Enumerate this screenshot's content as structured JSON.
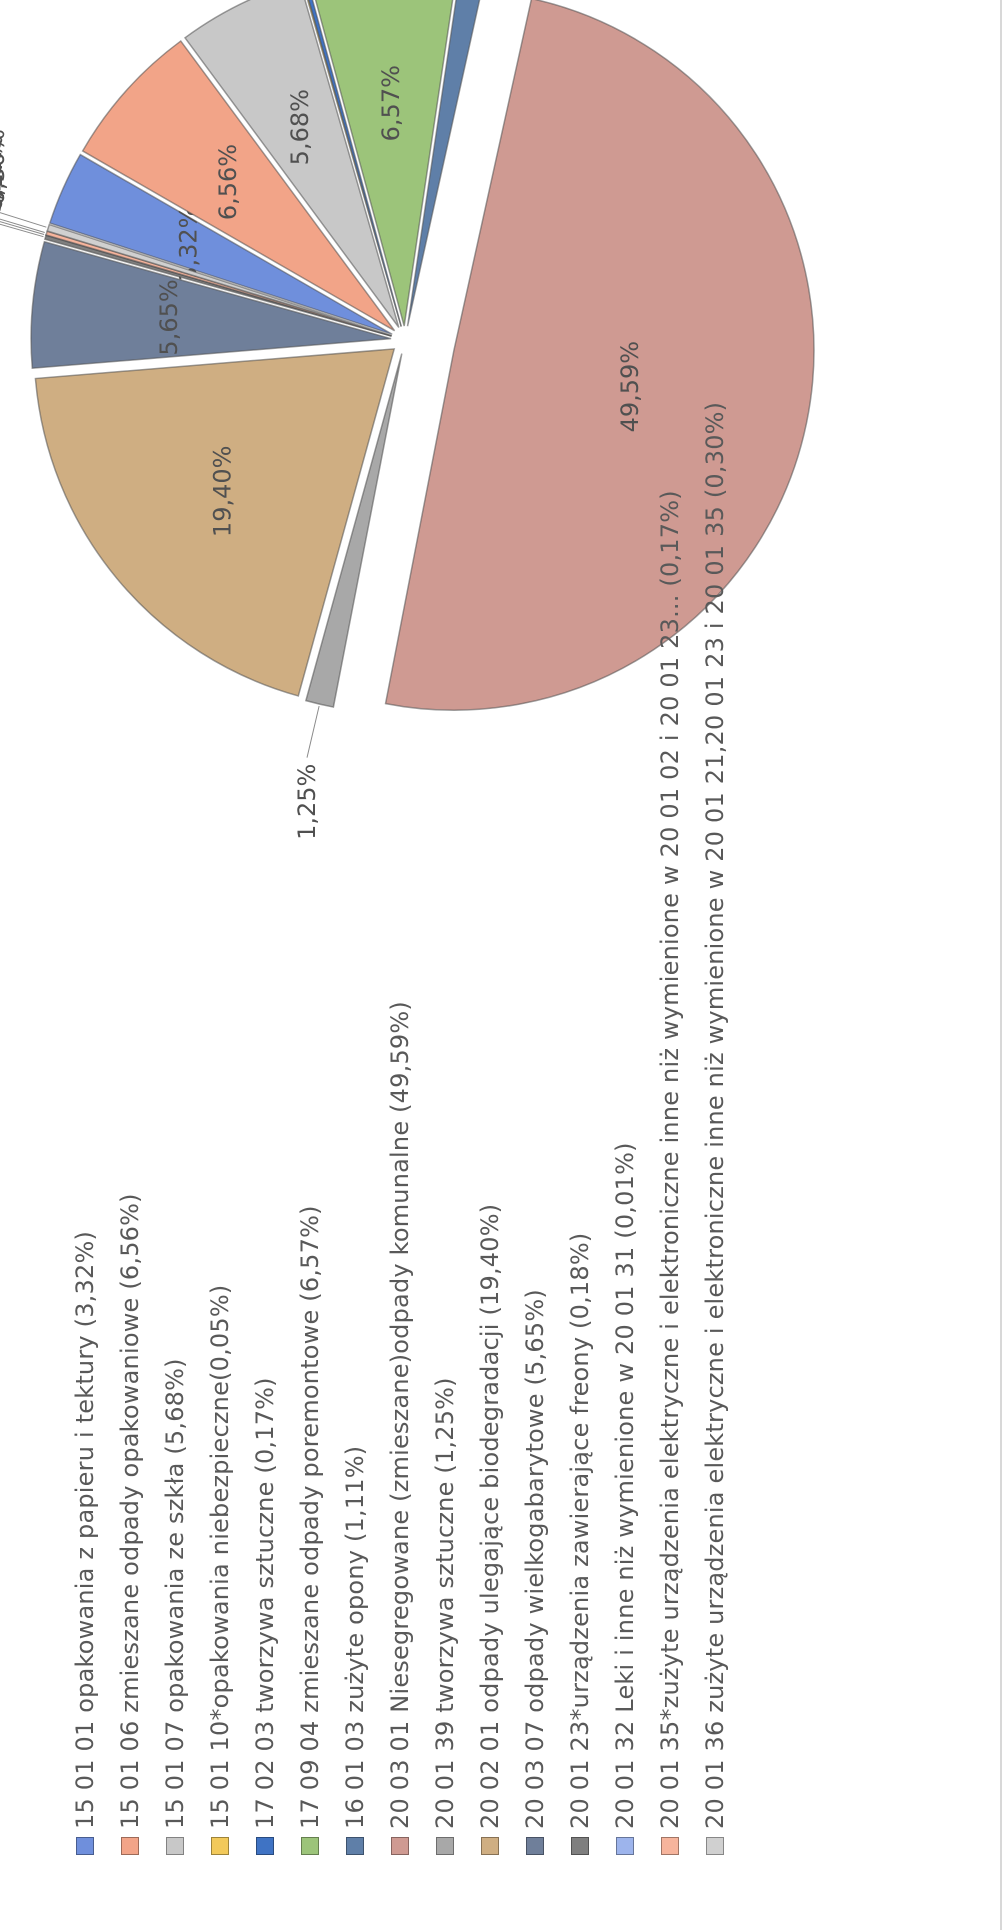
{
  "chart_data": {
    "type": "pie",
    "title": "",
    "slices": [
      {
        "label": "15 01 01 opakowania z papieru i tektury (3,32%)",
        "value": 3.32,
        "display": "3,32%",
        "color": "#6f8fdc",
        "explode": 0
      },
      {
        "label": "15 01 06 zmieszane odpady opakowaniowe (6,56%)",
        "value": 6.56,
        "display": "6,56%",
        "color": "#f2a488",
        "explode": 0
      },
      {
        "label": "15 01 07 opakowania ze szkła (5,68%)",
        "value": 5.68,
        "display": "5,68%",
        "color": "#c8c8c8",
        "explode": 0
      },
      {
        "label": "15 01 10*opakowania niebezpieczne(0,05%)",
        "value": 0.05,
        "display": "0,05%",
        "color": "#f2c95a",
        "explode": 0
      },
      {
        "label": "17 02 03 tworzywa sztuczne (0,17%)",
        "value": 0.17,
        "display": "0,17%",
        "color": "#3f73c4",
        "explode": 0
      },
      {
        "label": "17 09 04 zmieszane odpady poremontowe (6,57%)",
        "value": 6.57,
        "display": "6,57%",
        "color": "#9cc47a",
        "explode": 0
      },
      {
        "label": "16 01 03 zużyte opony (1,11%)",
        "value": 1.11,
        "display": "1,11%",
        "color": "#5f7fa8",
        "explode": 0
      },
      {
        "label": "20 03 01 Niesegregowane (zmieszane)odpady komunalne (49,59%)",
        "value": 49.59,
        "display": "49,59%",
        "color": "#cf9a92",
        "explode": 1
      },
      {
        "label": "20 01 39 tworzywa sztuczne (1,25%)",
        "value": 1.25,
        "display": "1,25%",
        "color": "#a8a8a8",
        "explode": 0
      },
      {
        "label": "20 02 01 odpady ulegające biodegradacji (19,40%)",
        "value": 19.4,
        "display": "19,40%",
        "color": "#cfae82",
        "explode": 0
      },
      {
        "label": "20 03 07 odpady wielkogabarytowe (5,65%)",
        "value": 5.65,
        "display": "5,65%",
        "color": "#6f7f9a",
        "explode": 0
      },
      {
        "label": "20 01 23*urządzenia zawierające freony (0,18%)",
        "value": 0.18,
        "display": "0,18%",
        "color": "#7f7f7f",
        "explode": 0
      },
      {
        "label": "20 01 32 Leki i inne niż wymienione w 20 01 31 (0,01%)",
        "value": 0.01,
        "display": "0,01%",
        "color": "#9db4ec",
        "explode": 0
      },
      {
        "label": "20 01 35*zużyte urządzenia elektryczne i elektroniczne inne niż wymienione w 20 01 02 i 20 01 23... (0,17%)",
        "value": 0.17,
        "display": "0,17%",
        "color": "#f6b49c",
        "explode": 0
      },
      {
        "label": "20 01 36 zużyte urządzenia elektryczne i elektroniczne inne niż wymienione w 20 01 21,20 01 23 i 20 01 35 (0,30%)",
        "value": 0.3,
        "display": "0,30%",
        "color": "#d0d0d0",
        "explode": 0
      }
    ],
    "legend_placement": "left (rotated page)"
  }
}
